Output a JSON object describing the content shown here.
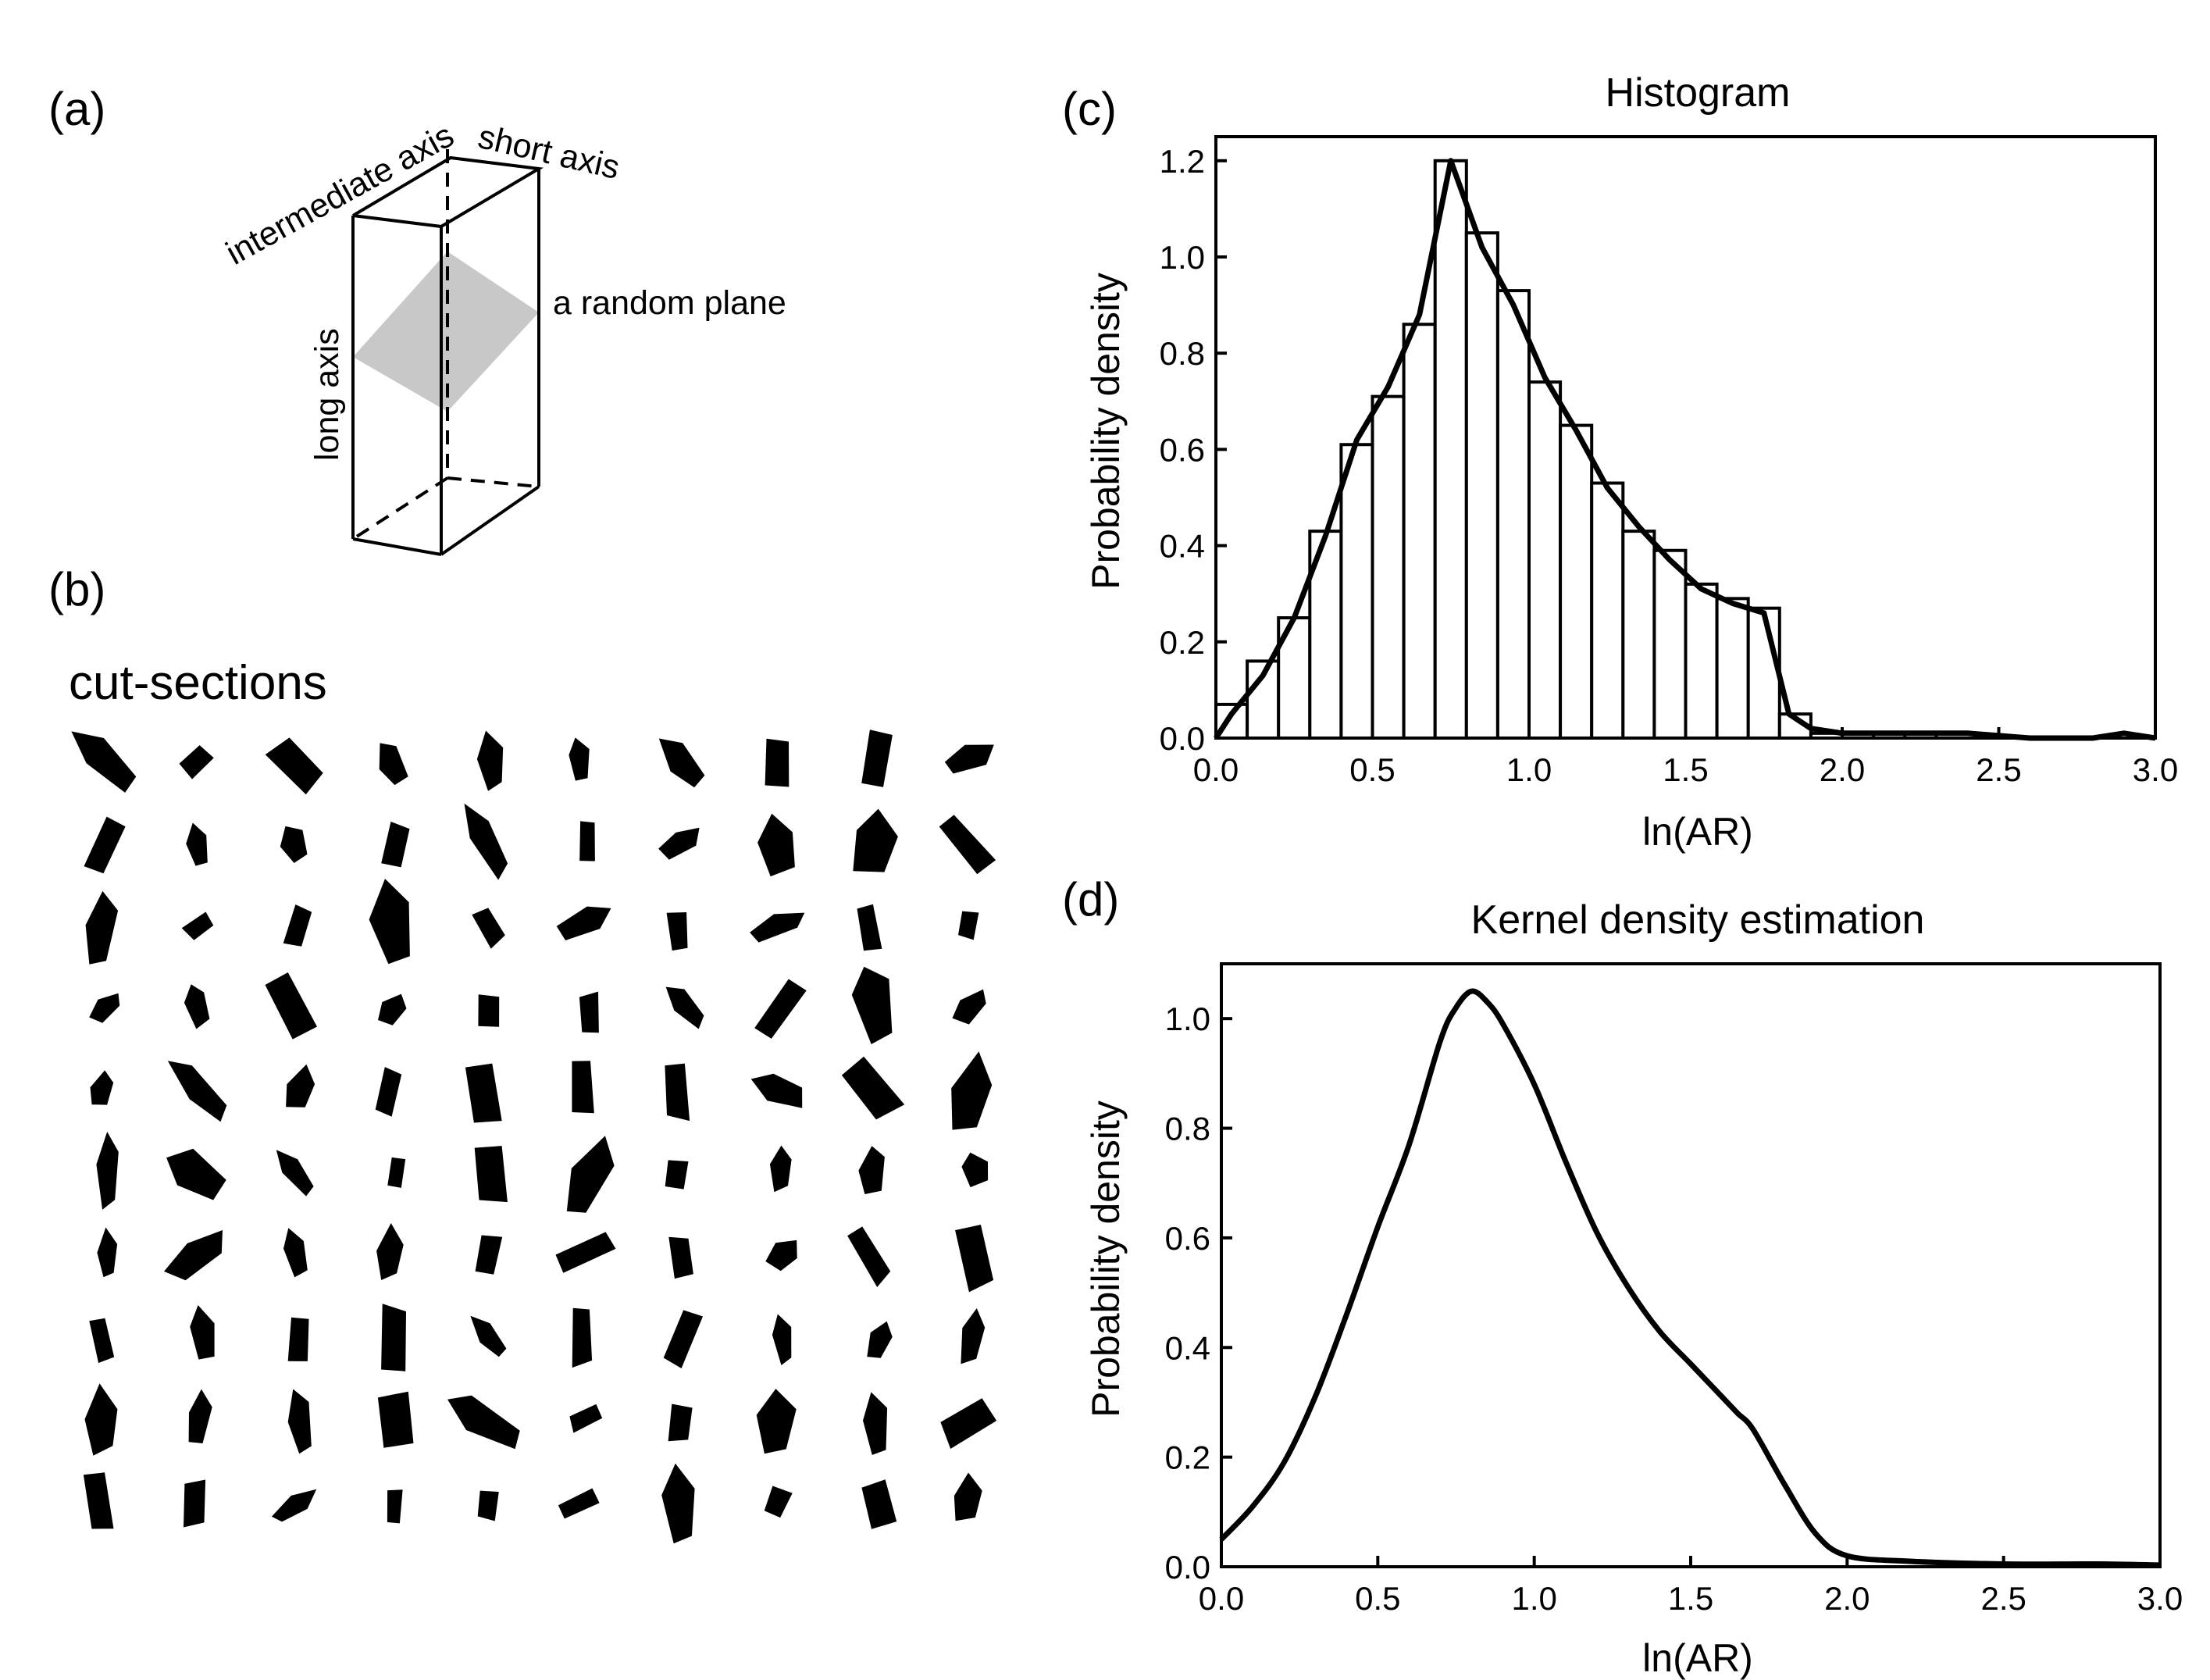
{
  "panels": {
    "a": {
      "label": "(a)",
      "axis_labels": {
        "intermediate": "intermediate axis",
        "short": "short axis",
        "long": "long axis",
        "plane": "a random plane"
      }
    },
    "b": {
      "label": "(b)",
      "caption": "cut-sections",
      "grid": {
        "rows": 10,
        "cols": 10
      }
    },
    "c": {
      "label": "(c)"
    },
    "d": {
      "label": "(d)"
    }
  },
  "colors": {
    "ink": "#000000",
    "plane_fill": "#c8c8c8",
    "background": "#ffffff"
  },
  "chart_data": [
    {
      "id": "histogram",
      "type": "bar",
      "title": "Histogram",
      "xlabel": "ln(AR)",
      "ylabel": "Probability density",
      "xlim": [
        0,
        3
      ],
      "ylim": [
        0,
        1.25
      ],
      "xticks": [
        0.0,
        0.5,
        1.0,
        1.5,
        2.0,
        2.5,
        3.0
      ],
      "yticks": [
        0.0,
        0.2,
        0.4,
        0.6,
        0.8,
        1.0,
        1.2
      ],
      "bin_width": 0.1,
      "bin_edges": [
        0.0,
        0.1,
        0.2,
        0.3,
        0.4,
        0.5,
        0.6,
        0.7,
        0.8,
        0.9,
        1.0,
        1.1,
        1.2,
        1.3,
        1.4,
        1.5,
        1.6,
        1.7,
        1.8,
        1.9,
        2.0,
        2.1,
        2.2,
        2.3,
        2.4,
        2.5,
        2.6,
        2.7,
        2.8,
        2.9,
        3.0
      ],
      "values": [
        0.07,
        0.16,
        0.25,
        0.43,
        0.61,
        0.71,
        0.86,
        1.2,
        1.05,
        0.93,
        0.74,
        0.65,
        0.53,
        0.43,
        0.39,
        0.32,
        0.29,
        0.27,
        0.05,
        0.01,
        0.01,
        0.0,
        0.01,
        0.0,
        0.0,
        0.0,
        0.0,
        0.0,
        0.0,
        0.0
      ],
      "overlay_curve": {
        "x": [
          0.0,
          0.05,
          0.15,
          0.25,
          0.35,
          0.45,
          0.55,
          0.65,
          0.75,
          0.85,
          0.95,
          1.05,
          1.15,
          1.25,
          1.35,
          1.45,
          1.55,
          1.65,
          1.75,
          1.83,
          1.9,
          2.0,
          2.2,
          2.4,
          2.6,
          2.8,
          2.9,
          3.0
        ],
        "y": [
          0.0,
          0.05,
          0.13,
          0.25,
          0.42,
          0.62,
          0.73,
          0.88,
          1.2,
          1.02,
          0.9,
          0.75,
          0.64,
          0.52,
          0.44,
          0.37,
          0.31,
          0.28,
          0.26,
          0.05,
          0.02,
          0.01,
          0.01,
          0.01,
          0.0,
          0.0,
          0.01,
          0.0
        ]
      }
    },
    {
      "id": "kde",
      "type": "line",
      "title": "Kernel density estimation",
      "xlabel": "ln(AR)",
      "ylabel": "Probability density",
      "xlim": [
        0,
        3
      ],
      "ylim": [
        0,
        1.1
      ],
      "xticks": [
        0.0,
        0.5,
        1.0,
        1.5,
        2.0,
        2.5,
        3.0
      ],
      "yticks": [
        0.0,
        0.2,
        0.4,
        0.6,
        0.8,
        1.0
      ],
      "x": [
        0.0,
        0.1,
        0.2,
        0.3,
        0.4,
        0.5,
        0.6,
        0.7,
        0.75,
        0.8,
        0.85,
        0.9,
        1.0,
        1.1,
        1.2,
        1.3,
        1.4,
        1.5,
        1.6,
        1.65,
        1.7,
        1.8,
        1.9,
        2.0,
        2.2,
        2.5,
        2.8,
        3.0
      ],
      "y": [
        0.05,
        0.11,
        0.19,
        0.31,
        0.46,
        0.62,
        0.77,
        0.96,
        1.02,
        1.05,
        1.03,
        0.99,
        0.88,
        0.74,
        0.61,
        0.51,
        0.43,
        0.37,
        0.31,
        0.28,
        0.25,
        0.15,
        0.06,
        0.02,
        0.01,
        0.005,
        0.005,
        0.003
      ]
    }
  ]
}
